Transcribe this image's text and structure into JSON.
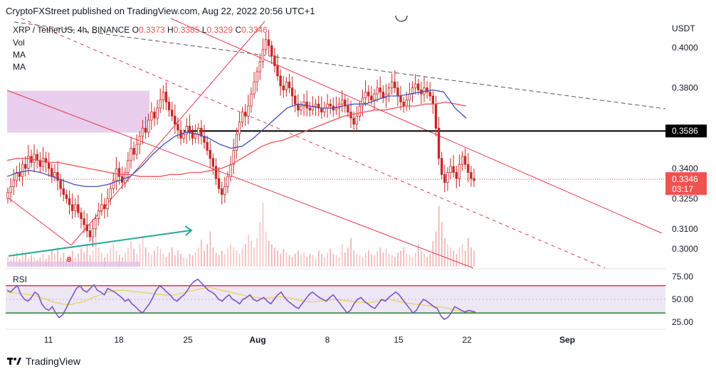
{
  "header": {
    "publisher": "CryptoFXStreet published on TradingView.com, Aug 22, 2022 20:56 UTC+1"
  },
  "symbol": {
    "name": "XRP / TetherUS, 4h, BINANCE",
    "o_label": "O",
    "o_value": "0.3373",
    "h_label": "H",
    "h_value": "0.3385",
    "l_label": "L",
    "l_value": "0.3329",
    "c_label": "C",
    "c_value": "0.3346"
  },
  "indicators": [
    "Vol",
    "MA",
    "MA"
  ],
  "currency": "USDT",
  "rsi_label": "RSI",
  "footer": {
    "brand": "TradingView"
  },
  "colors": {
    "candle": "#ef5350",
    "ma_red": "#ef5350",
    "ma_blue": "#3f51b5",
    "channel": "#e53950",
    "dashed_grey": "#555555",
    "support": "#000000",
    "zone": "#e1bee7",
    "arrow": "#26a69a",
    "rsi_line": "#7e57c2",
    "rsi_ma": "#e6d24a",
    "rsi_upper": "#e53935",
    "rsi_lower": "#2e7d32",
    "rsi_band": "#ede7f6"
  },
  "chart_data": {
    "type": "candlestick",
    "timeframe": "4h",
    "x_ticks": [
      "11",
      "18",
      "25",
      "Aug",
      "8",
      "15",
      "22",
      "Sep"
    ],
    "y_ticks": [
      "0.4000",
      "0.3800",
      "0.3586",
      "0.3400",
      "0.3346",
      "0.3250",
      "0.3100",
      "0.3000"
    ],
    "ylim": [
      0.2905,
      0.4145
    ],
    "price_badges": [
      {
        "label": "0.3586",
        "value": 0.3586,
        "style": "black"
      },
      {
        "label": "0.3346",
        "sub": "03:17",
        "value": 0.3346,
        "style": "red"
      }
    ],
    "support_level": 0.3586,
    "current_price": 0.3346,
    "candles_close": [
      0.328,
      0.331,
      0.334,
      0.338,
      0.336,
      0.342,
      0.34,
      0.346,
      0.343,
      0.347,
      0.344,
      0.341,
      0.345,
      0.343,
      0.34,
      0.336,
      0.338,
      0.334,
      0.33,
      0.327,
      0.325,
      0.322,
      0.319,
      0.322,
      0.318,
      0.315,
      0.312,
      0.309,
      0.306,
      0.31,
      0.315,
      0.319,
      0.322,
      0.32,
      0.325,
      0.33,
      0.334,
      0.34,
      0.336,
      0.333,
      0.338,
      0.344,
      0.35,
      0.347,
      0.352,
      0.356,
      0.36,
      0.358,
      0.364,
      0.368,
      0.365,
      0.37,
      0.374,
      0.378,
      0.373,
      0.369,
      0.366,
      0.362,
      0.359,
      0.355,
      0.357,
      0.361,
      0.358,
      0.355,
      0.357,
      0.36,
      0.356,
      0.353,
      0.349,
      0.345,
      0.341,
      0.335,
      0.33,
      0.327,
      0.331,
      0.336,
      0.342,
      0.349,
      0.357,
      0.363,
      0.368,
      0.366,
      0.371,
      0.377,
      0.383,
      0.388,
      0.393,
      0.399,
      0.404,
      0.401,
      0.396,
      0.391,
      0.386,
      0.381,
      0.379,
      0.383,
      0.38,
      0.376,
      0.372,
      0.369,
      0.371,
      0.373,
      0.37,
      0.369,
      0.371,
      0.372,
      0.37,
      0.368,
      0.37,
      0.372,
      0.371,
      0.369,
      0.37,
      0.372,
      0.374,
      0.371,
      0.368,
      0.365,
      0.362,
      0.366,
      0.371,
      0.375,
      0.378,
      0.376,
      0.374,
      0.377,
      0.38,
      0.378,
      0.375,
      0.377,
      0.38,
      0.383,
      0.38,
      0.376,
      0.373,
      0.371,
      0.374,
      0.377,
      0.38,
      0.382,
      0.379,
      0.377,
      0.38,
      0.378,
      0.376,
      0.372,
      0.36,
      0.345,
      0.337,
      0.333,
      0.338,
      0.341,
      0.338,
      0.335,
      0.342,
      0.346,
      0.342,
      0.338,
      0.335,
      0.334
    ],
    "volume_norm": [
      0.15,
      0.1,
      0.18,
      0.22,
      0.12,
      0.25,
      0.2,
      0.12,
      0.18,
      0.15,
      0.1,
      0.14,
      0.2,
      0.12,
      0.18,
      0.25,
      0.2,
      0.3,
      0.15,
      0.22,
      0.12,
      0.18,
      0.25,
      0.15,
      0.2,
      0.28,
      0.22,
      0.35,
      0.18,
      0.25,
      0.45,
      0.3,
      0.22,
      0.15,
      0.2,
      0.28,
      0.35,
      0.25,
      0.18,
      0.15,
      0.22,
      0.3,
      0.4,
      0.28,
      0.2,
      0.35,
      0.48,
      0.3,
      0.22,
      0.18,
      0.25,
      0.32,
      0.28,
      0.2,
      0.15,
      0.22,
      0.3,
      0.18,
      0.25,
      0.2,
      0.15,
      0.12,
      0.2,
      0.18,
      0.22,
      0.3,
      0.42,
      0.25,
      0.35,
      0.55,
      0.3,
      0.22,
      0.18,
      0.25,
      0.2,
      0.28,
      0.35,
      0.3,
      0.25,
      0.2,
      0.28,
      0.35,
      0.5,
      0.4,
      0.3,
      0.45,
      0.7,
      1.0,
      0.55,
      0.4,
      0.35,
      0.3,
      0.25,
      0.2,
      0.28,
      0.22,
      0.18,
      0.15,
      0.2,
      0.25,
      0.18,
      0.22,
      0.15,
      0.2,
      0.18,
      0.12,
      0.25,
      0.2,
      0.15,
      0.22,
      0.28,
      0.2,
      0.18,
      0.15,
      0.35,
      0.22,
      0.3,
      0.45,
      0.25,
      0.2,
      0.18,
      0.15,
      0.22,
      0.25,
      0.2,
      0.18,
      0.25,
      0.3,
      0.22,
      0.28,
      0.2,
      0.18,
      0.15,
      0.22,
      0.25,
      0.3,
      0.2,
      0.18,
      0.15,
      0.22,
      0.35,
      0.25,
      0.2,
      0.15,
      0.2,
      0.4,
      0.55,
      0.95,
      0.7,
      0.45,
      0.35,
      0.3,
      0.25,
      0.2,
      0.3,
      0.35,
      0.25,
      0.45,
      0.3,
      0.25
    ],
    "ma_red": [
      0.344,
      0.345,
      0.345,
      0.344,
      0.343,
      0.343,
      0.342,
      0.341,
      0.34,
      0.339,
      0.338,
      0.337,
      0.337,
      0.336,
      0.336,
      0.336,
      0.337,
      0.337,
      0.338,
      0.338,
      0.339,
      0.34,
      0.342,
      0.345,
      0.348,
      0.351,
      0.353,
      0.354,
      0.356,
      0.358,
      0.36,
      0.362,
      0.364,
      0.366,
      0.367,
      0.368,
      0.369,
      0.369,
      0.37,
      0.371,
      0.371,
      0.372,
      0.372,
      0.373,
      0.372,
      0.371
    ],
    "ma_blue": [
      0.336,
      0.338,
      0.339,
      0.338,
      0.336,
      0.334,
      0.332,
      0.331,
      0.331,
      0.332,
      0.334,
      0.336,
      0.341,
      0.347,
      0.352,
      0.356,
      0.358,
      0.357,
      0.355,
      0.352,
      0.35,
      0.351,
      0.355,
      0.36,
      0.365,
      0.37,
      0.372,
      0.371,
      0.37,
      0.37,
      0.371,
      0.372,
      0.372,
      0.374,
      0.376,
      0.376,
      0.377,
      0.378,
      0.379,
      0.378,
      0.37,
      0.365
    ],
    "rsi": {
      "ylim": [
        18,
        82
      ],
      "ticks": [
        75,
        50,
        25
      ],
      "upper": 65,
      "lower": 35,
      "values": [
        60,
        58,
        62,
        65,
        55,
        50,
        48,
        52,
        58,
        55,
        45,
        40,
        38,
        42,
        35,
        30,
        33,
        40,
        48,
        55,
        62,
        65,
        60,
        58,
        62,
        66,
        60,
        58,
        55,
        62,
        60,
        58,
        55,
        52,
        48,
        50,
        45,
        42,
        38,
        35,
        40,
        45,
        52,
        60,
        65,
        62,
        58,
        55,
        50,
        48,
        52,
        55,
        60,
        66,
        70,
        72,
        68,
        64,
        60,
        58,
        55,
        50,
        48,
        52,
        55,
        50,
        48,
        45,
        50,
        52,
        55,
        50,
        48,
        50,
        52,
        48,
        45,
        50,
        55,
        58,
        52,
        48,
        45,
        42,
        40,
        45,
        50,
        55,
        58,
        55,
        52,
        50,
        48,
        52,
        55,
        50,
        45,
        40,
        35,
        38,
        45,
        50,
        52,
        48,
        45,
        42,
        40,
        45,
        50,
        48,
        52,
        55,
        58,
        55,
        50,
        45,
        40,
        35,
        38,
        45,
        50,
        48,
        45,
        42,
        40,
        32,
        28,
        30,
        35,
        42,
        40,
        38,
        36,
        38,
        37,
        36
      ],
      "ma_values": [
        58,
        57,
        56,
        55,
        53,
        50,
        47,
        45,
        44,
        46,
        48,
        52,
        55,
        58,
        60,
        60,
        59,
        58,
        57,
        56,
        55,
        54,
        56,
        58,
        60,
        62,
        63,
        61,
        59,
        57,
        55,
        53,
        52,
        51,
        52,
        53,
        52,
        50,
        48,
        47,
        48,
        49,
        50,
        49,
        48,
        47,
        46,
        47,
        49,
        50,
        48,
        46,
        45,
        44,
        43,
        42,
        41,
        39,
        37,
        36,
        36
      ]
    }
  }
}
